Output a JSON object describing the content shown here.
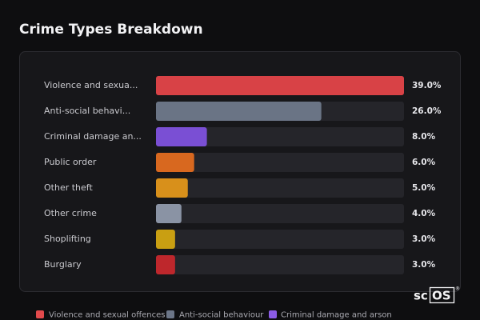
{
  "chart_data": {
    "type": "bar",
    "title": "Crime Types Breakdown",
    "categories": [
      "Violence and sexua...",
      "Anti-social behavi...",
      "Criminal damage an...",
      "Public order",
      "Other theft",
      "Other crime",
      "Shoplifting",
      "Burglary"
    ],
    "values": [
      39.0,
      26.0,
      8.0,
      6.0,
      5.0,
      4.0,
      3.0,
      3.0
    ],
    "value_labels": [
      "39.0%",
      "26.0%",
      "8.0%",
      "6.0%",
      "5.0%",
      "4.0%",
      "3.0%",
      "3.0%"
    ],
    "colors": [
      "#d84246",
      "#6a7485",
      "#7a4fd4",
      "#d8681f",
      "#d8901b",
      "#8a93a4",
      "#c99f12",
      "#be272c"
    ],
    "legend": [
      {
        "name": "Violence and sexual offences",
        "color": "#e14a4c"
      },
      {
        "name": "Anti-social behaviour",
        "color": "#6b7587"
      },
      {
        "name": "Criminal damage and arson",
        "color": "#8b5ce6"
      }
    ]
  },
  "logo": {
    "prefix": "sc",
    "boxed": "OS",
    "mark": "®"
  }
}
